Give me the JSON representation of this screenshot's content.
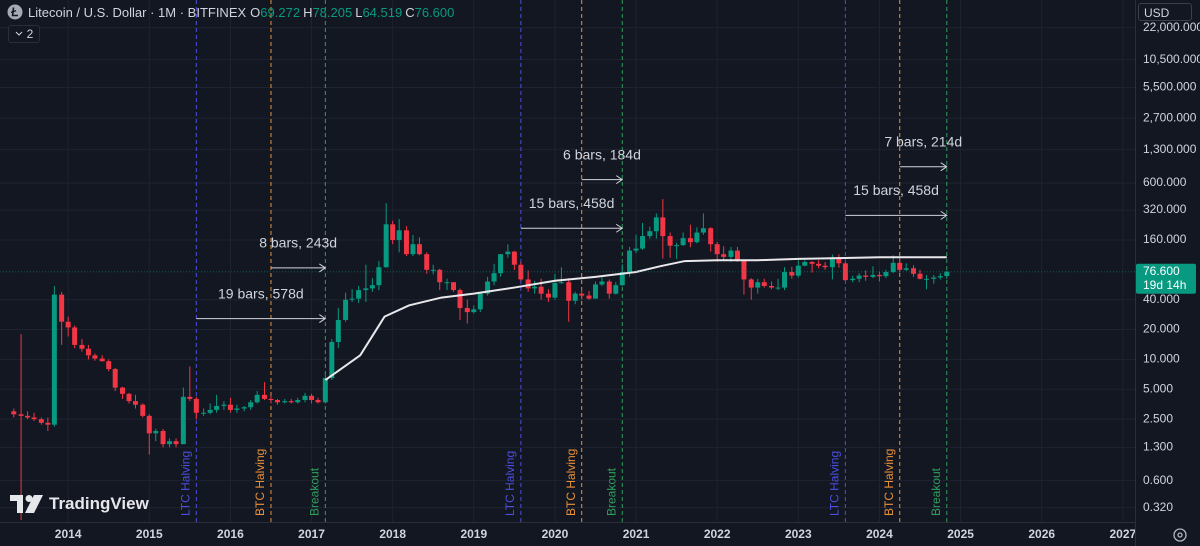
{
  "header": {
    "title": "Litecoin / U.S. Dollar · 1M · BITFINEX",
    "ohlc": [
      {
        "key": "O",
        "value": "69.272"
      },
      {
        "key": "H",
        "value": "78.205"
      },
      {
        "key": "L",
        "value": "64.519"
      },
      {
        "key": "C",
        "value": "76.600"
      }
    ],
    "indicators": "2",
    "currency": "USD",
    "brand": "TradingView"
  },
  "chart_data": {
    "type": "candlestick",
    "log_scale": true,
    "grid": true,
    "up_color": "#089981",
    "down_color": "#f23645",
    "xlim": [
      2013.16,
      2027.15
    ],
    "xticks": [
      2014,
      2015,
      2016,
      2017,
      2018,
      2019,
      2020,
      2021,
      2022,
      2023,
      2024,
      2025,
      2026,
      2027
    ],
    "ylim": [
      0.23,
      41900
    ],
    "yticks": [
      {
        "value": 0.32,
        "label": "0.320"
      },
      {
        "value": 0.6,
        "label": "0.600"
      },
      {
        "value": 1.3,
        "label": "1.300"
      },
      {
        "value": 2.5,
        "label": "2.500"
      },
      {
        "value": 5,
        "label": "5.000"
      },
      {
        "value": 10,
        "label": "10.000"
      },
      {
        "value": 20,
        "label": "20.000"
      },
      {
        "value": 40,
        "label": "40.000"
      },
      {
        "value": 160,
        "label": "160.000"
      },
      {
        "value": 320,
        "label": "320.000"
      },
      {
        "value": 600,
        "label": "600.000"
      },
      {
        "value": 1300,
        "label": "1,300.000"
      },
      {
        "value": 2700,
        "label": "2,700.000"
      },
      {
        "value": 5500,
        "label": "5,500.000"
      },
      {
        "value": 10500,
        "label": "10,500.000"
      },
      {
        "value": 22000,
        "label": "22,000.000"
      }
    ],
    "x": [
      2013.33,
      2013.42,
      2013.5,
      2013.58,
      2013.67,
      2013.75,
      2013.83,
      2013.92,
      2014,
      2014.08,
      2014.17,
      2014.25,
      2014.33,
      2014.42,
      2014.5,
      2014.58,
      2014.67,
      2014.75,
      2014.83,
      2014.92,
      2015,
      2015.08,
      2015.17,
      2015.25,
      2015.33,
      2015.42,
      2015.5,
      2015.58,
      2015.67,
      2015.75,
      2015.83,
      2015.92,
      2016,
      2016.08,
      2016.17,
      2016.25,
      2016.33,
      2016.42,
      2016.5,
      2016.58,
      2016.67,
      2016.75,
      2016.83,
      2016.92,
      2017,
      2017.08,
      2017.17,
      2017.25,
      2017.33,
      2017.42,
      2017.5,
      2017.58,
      2017.67,
      2017.75,
      2017.83,
      2017.92,
      2018,
      2018.08,
      2018.17,
      2018.25,
      2018.33,
      2018.42,
      2018.5,
      2018.58,
      2018.67,
      2018.75,
      2018.83,
      2018.92,
      2019,
      2019.08,
      2019.17,
      2019.25,
      2019.33,
      2019.42,
      2019.5,
      2019.58,
      2019.67,
      2019.75,
      2019.83,
      2019.92,
      2020,
      2020.08,
      2020.17,
      2020.25,
      2020.33,
      2020.42,
      2020.5,
      2020.58,
      2020.67,
      2020.75,
      2020.83,
      2020.92,
      2021,
      2021.08,
      2021.17,
      2021.25,
      2021.33,
      2021.42,
      2021.5,
      2021.58,
      2021.67,
      2021.75,
      2021.83,
      2021.92,
      2022,
      2022.08,
      2022.17,
      2022.25,
      2022.33,
      2022.42,
      2022.5,
      2022.58,
      2022.67,
      2022.75,
      2022.83,
      2022.92,
      2023,
      2023.08,
      2023.17,
      2023.25,
      2023.33,
      2023.42,
      2023.5,
      2023.58,
      2023.67,
      2023.75,
      2023.83,
      2023.92,
      2024,
      2024.08,
      2024.17,
      2024.25,
      2024.33,
      2024.42,
      2024.5,
      2024.58,
      2024.67,
      2024.75,
      2024.83
    ],
    "ohlc": [
      [
        3.0,
        3.2,
        2.6,
        2.8
      ],
      [
        2.8,
        18,
        0.24,
        2.7
      ],
      [
        2.7,
        3.0,
        2.5,
        2.6
      ],
      [
        2.6,
        2.9,
        2.4,
        2.5
      ],
      [
        2.5,
        2.6,
        2.2,
        2.3
      ],
      [
        2.3,
        2.6,
        1.9,
        2.2
      ],
      [
        2.2,
        55,
        2.1,
        45
      ],
      [
        45,
        48,
        14,
        24
      ],
      [
        24,
        27,
        17,
        21
      ],
      [
        21,
        22,
        13,
        14
      ],
      [
        14,
        16,
        12,
        12.8
      ],
      [
        12.8,
        14,
        10,
        11
      ],
      [
        11,
        11.5,
        9.7,
        10.2
      ],
      [
        10.2,
        11,
        9.5,
        9.6
      ],
      [
        9.6,
        10,
        7.6,
        8
      ],
      [
        8,
        8.2,
        4.8,
        5.2
      ],
      [
        5.2,
        5.3,
        4,
        4.5
      ],
      [
        4.5,
        4.6,
        3.6,
        3.8
      ],
      [
        3.8,
        4.4,
        3.2,
        3.5
      ],
      [
        3.5,
        3.6,
        2.6,
        2.7
      ],
      [
        2.7,
        2.8,
        1.1,
        1.8
      ],
      [
        1.8,
        2.0,
        1.5,
        1.9
      ],
      [
        1.9,
        2.0,
        1.3,
        1.4
      ],
      [
        1.4,
        1.6,
        1.3,
        1.5
      ],
      [
        1.5,
        1.6,
        1.3,
        1.4
      ],
      [
        1.4,
        5.2,
        1.4,
        4.2
      ],
      [
        4.2,
        8.5,
        3.8,
        4.0
      ],
      [
        4.0,
        4.2,
        2.5,
        2.9
      ],
      [
        2.9,
        3.2,
        2.7,
        2.9
      ],
      [
        2.9,
        3.6,
        2.8,
        3.1
      ],
      [
        3.1,
        4.4,
        2.9,
        3.4
      ],
      [
        3.4,
        3.8,
        3.1,
        3.5
      ],
      [
        3.5,
        4.1,
        2.9,
        3.1
      ],
      [
        3.1,
        3.5,
        2.9,
        3.2
      ],
      [
        3.2,
        3.4,
        3.0,
        3.3
      ],
      [
        3.3,
        3.9,
        3.1,
        3.7
      ],
      [
        3.7,
        4.8,
        3.6,
        4.4
      ],
      [
        4.4,
        5.9,
        3.9,
        4.0
      ],
      [
        4.0,
        4.3,
        3.6,
        3.9
      ],
      [
        3.9,
        4.0,
        3.5,
        3.7
      ],
      [
        3.7,
        4.0,
        3.6,
        3.8
      ],
      [
        3.8,
        4.0,
        3.6,
        3.7
      ],
      [
        3.7,
        4.1,
        3.6,
        3.9
      ],
      [
        3.9,
        4.6,
        3.7,
        4.3
      ],
      [
        4.3,
        4.5,
        3.6,
        3.9
      ],
      [
        3.9,
        4.1,
        3.6,
        3.7
      ],
      [
        3.7,
        7.0,
        3.6,
        6.5
      ],
      [
        6.5,
        16,
        6.2,
        15
      ],
      [
        15,
        33,
        13,
        25
      ],
      [
        25,
        47,
        24,
        40
      ],
      [
        40,
        51,
        38,
        41
      ],
      [
        41,
        55,
        37,
        50
      ],
      [
        50,
        90,
        38,
        52
      ],
      [
        52,
        66,
        48,
        56
      ],
      [
        56,
        98,
        50,
        85
      ],
      [
        85,
        375,
        84,
        230
      ],
      [
        230,
        250,
        145,
        160
      ],
      [
        160,
        260,
        120,
        200
      ],
      [
        200,
        220,
        110,
        115
      ],
      [
        115,
        180,
        110,
        145
      ],
      [
        145,
        170,
        112,
        115
      ],
      [
        115,
        120,
        73,
        80
      ],
      [
        80,
        90,
        72,
        80
      ],
      [
        80,
        82,
        50,
        60
      ],
      [
        60,
        65,
        50,
        60
      ],
      [
        60,
        60,
        48,
        50
      ],
      [
        50,
        52,
        25,
        33
      ],
      [
        33,
        40,
        23,
        30
      ],
      [
        30,
        35,
        29,
        32
      ],
      [
        32,
        48,
        30,
        46
      ],
      [
        46,
        68,
        44,
        61
      ],
      [
        61,
        92,
        56,
        74
      ],
      [
        74,
        115,
        68,
        115
      ],
      [
        115,
        145,
        106,
        122
      ],
      [
        122,
        124,
        80,
        90
      ],
      [
        90,
        96,
        62,
        64
      ],
      [
        64,
        79,
        48,
        52
      ],
      [
        52,
        62,
        46,
        54
      ],
      [
        54,
        65,
        40,
        46
      ],
      [
        46,
        51,
        38,
        42
      ],
      [
        42,
        73,
        40,
        59
      ],
      [
        59,
        85,
        58,
        60
      ],
      [
        60,
        66,
        24,
        39
      ],
      [
        39,
        48,
        36,
        46
      ],
      [
        46,
        51,
        40,
        44
      ],
      [
        44,
        49,
        40,
        41
      ],
      [
        41,
        61,
        41,
        57
      ],
      [
        57,
        67,
        55,
        61
      ],
      [
        61,
        64,
        41,
        46
      ],
      [
        46,
        60,
        45,
        56
      ],
      [
        56,
        91,
        55,
        76
      ],
      [
        76,
        136,
        68,
        125
      ],
      [
        125,
        181,
        118,
        131
      ],
      [
        131,
        237,
        127,
        175
      ],
      [
        175,
        217,
        165,
        196
      ],
      [
        196,
        296,
        165,
        270
      ],
      [
        270,
        413,
        104,
        175
      ],
      [
        175,
        190,
        106,
        140
      ],
      [
        140,
        150,
        103,
        142
      ],
      [
        142,
        190,
        139,
        167
      ],
      [
        167,
        228,
        135,
        152
      ],
      [
        152,
        214,
        148,
        190
      ],
      [
        190,
        296,
        180,
        210
      ],
      [
        210,
        215,
        122,
        145
      ],
      [
        145,
        153,
        96,
        115
      ],
      [
        115,
        138,
        98,
        108
      ],
      [
        108,
        136,
        96,
        125
      ],
      [
        125,
        136,
        96,
        100
      ],
      [
        100,
        101,
        45,
        64
      ],
      [
        64,
        66,
        40,
        53
      ],
      [
        53,
        65,
        46,
        60
      ],
      [
        60,
        65,
        53,
        55
      ],
      [
        55,
        61,
        51,
        53
      ],
      [
        53,
        65,
        50,
        53
      ],
      [
        53,
        85,
        50,
        76
      ],
      [
        76,
        86,
        65,
        70
      ],
      [
        70,
        100,
        67,
        88
      ],
      [
        88,
        100,
        87,
        96
      ],
      [
        96,
        98,
        75,
        92
      ],
      [
        92,
        100,
        83,
        88
      ],
      [
        88,
        96,
        80,
        85
      ],
      [
        85,
        114,
        64,
        107
      ],
      [
        107,
        115,
        84,
        93
      ],
      [
        93,
        95,
        62,
        63
      ],
      [
        63,
        70,
        60,
        65
      ],
      [
        65,
        74,
        60,
        70
      ],
      [
        70,
        79,
        62,
        68
      ],
      [
        68,
        87,
        66,
        71
      ],
      [
        71,
        77,
        61,
        69
      ],
      [
        69,
        80,
        66,
        76
      ],
      [
        76,
        112,
        74,
        94
      ],
      [
        94,
        110,
        75,
        80
      ],
      [
        80,
        93,
        78,
        83
      ],
      [
        83,
        89,
        68,
        73
      ],
      [
        73,
        80,
        64,
        65
      ],
      [
        65,
        71,
        51,
        65
      ],
      [
        65,
        71,
        58,
        67
      ],
      [
        67,
        74,
        64,
        69
      ],
      [
        69.272,
        78.205,
        64.519,
        76.6
      ]
    ],
    "ma": {
      "color": "#e8e8ec",
      "x": [
        2017.17,
        2017.6,
        2017.9,
        2018.2,
        2018.6,
        2019.0,
        2019.5,
        2020.0,
        2020.5,
        2021.0,
        2021.3,
        2021.6,
        2022.0,
        2022.5,
        2023.0,
        2023.5,
        2024.0,
        2024.83
      ],
      "values": [
        6.2,
        11,
        27,
        35,
        42,
        46,
        53,
        62,
        68,
        76,
        87,
        98,
        100,
        100,
        103,
        105,
        107,
        107
      ]
    },
    "events": [
      {
        "x": 2015.58,
        "label": "LTC Halving",
        "color": "#4b4fe0"
      },
      {
        "x": 2016.5,
        "label": "BTC Halving",
        "color": "#e8913a"
      },
      {
        "x": 2017.17,
        "label": "Breakout",
        "color": "#2f9e5c"
      },
      {
        "x": 2019.58,
        "label": "LTC Halving",
        "color": "#4b4fe0"
      },
      {
        "x": 2020.33,
        "label": "BTC Halving",
        "color": "#e8913a"
      },
      {
        "x": 2020.83,
        "label": "Breakout",
        "color": "#2f9e5c"
      },
      {
        "x": 2023.58,
        "label": "LTC Halving",
        "color": "#4b4fe0"
      },
      {
        "x": 2024.25,
        "label": "BTC Halving",
        "color": "#e8913a"
      },
      {
        "x": 2024.83,
        "label": "Breakout",
        "color": "#2f9e5c"
      }
    ],
    "ranges": [
      {
        "x1": 2015.58,
        "x2": 2017.17,
        "y": 25.8,
        "label": "19 bars, 578d"
      },
      {
        "x1": 2016.5,
        "x2": 2017.17,
        "y": 83.6,
        "label": "8 bars, 243d"
      },
      {
        "x1": 2019.58,
        "x2": 2020.83,
        "y": 210,
        "label": "15 bars, 458d"
      },
      {
        "x1": 2020.33,
        "x2": 2020.83,
        "y": 649,
        "label": "6 bars, 184d"
      },
      {
        "x1": 2023.58,
        "x2": 2024.83,
        "y": 283,
        "label": "15 bars, 458d"
      },
      {
        "x1": 2024.25,
        "x2": 2024.83,
        "y": 875,
        "label": "7 bars, 214d"
      }
    ],
    "last_price": {
      "value": 76.6,
      "label": "76.600",
      "countdown": "19d 14h"
    }
  }
}
